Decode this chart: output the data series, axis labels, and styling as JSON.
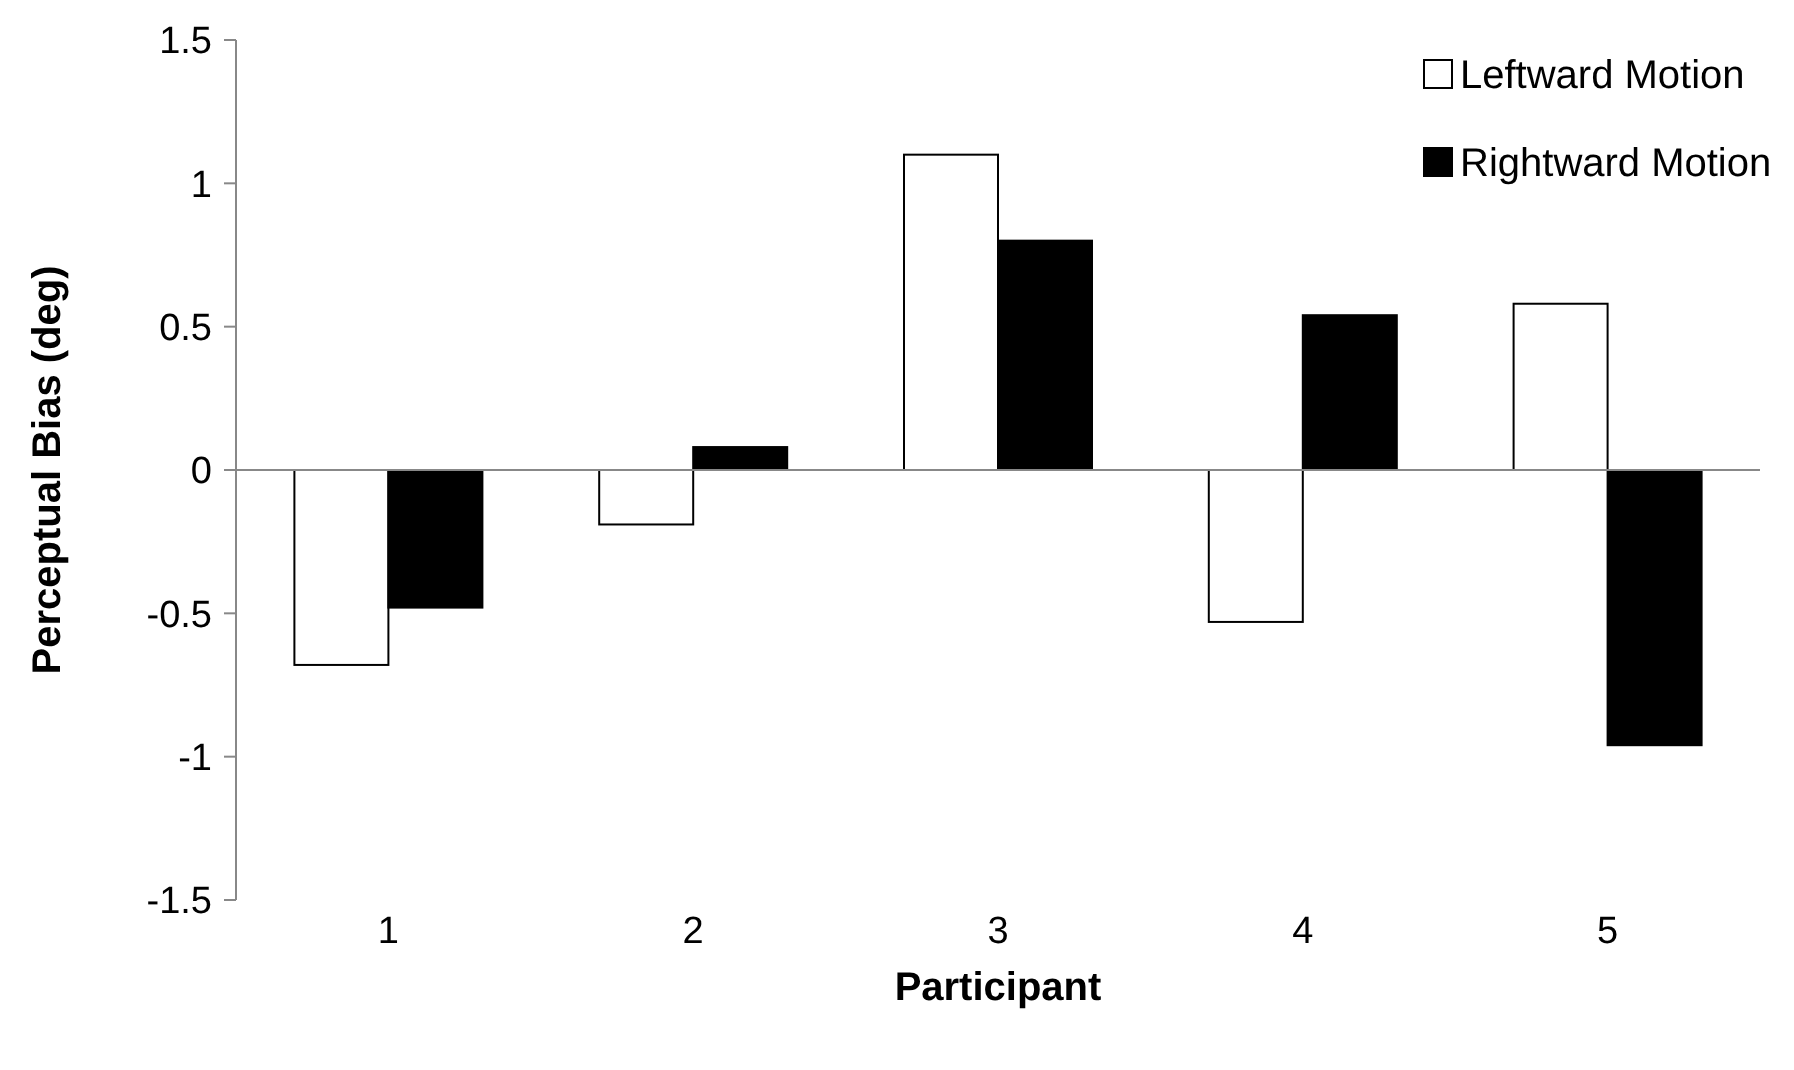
{
  "chart_data": {
    "type": "bar",
    "xlabel": "Participant",
    "ylabel": "Perceptual Bias (deg)",
    "categories": [
      "1",
      "2",
      "3",
      "4",
      "5"
    ],
    "series": [
      {
        "name": "Leftward Motion",
        "color": "#ffffff",
        "values": [
          -0.68,
          -0.19,
          1.1,
          -0.53,
          0.58
        ]
      },
      {
        "name": "Rightward Motion",
        "color": "#000000",
        "values": [
          -0.48,
          0.08,
          0.8,
          0.54,
          -0.96
        ]
      }
    ],
    "ylim": [
      -1.5,
      1.5
    ],
    "yticks": [
      -1.5,
      -1,
      -0.5,
      0,
      0.5,
      1,
      1.5
    ],
    "legend": "top right"
  }
}
